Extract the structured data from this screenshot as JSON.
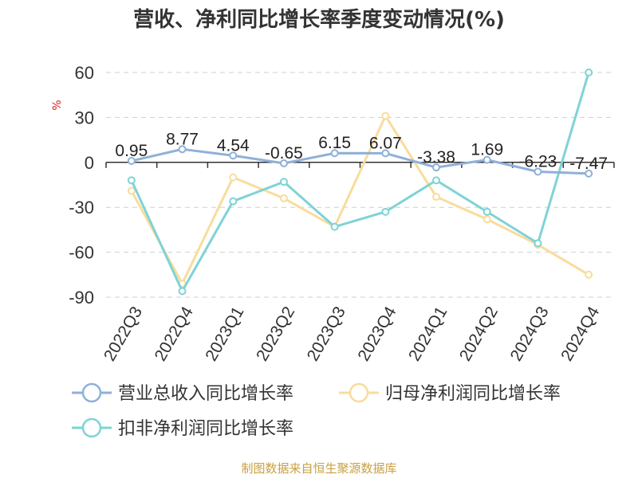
{
  "chart_data": {
    "type": "line",
    "title": "营收、净利同比增长率季度变动情况(%)",
    "ylabel": "%",
    "xlabel": "",
    "ylim": [
      -90,
      60
    ],
    "yticks": [
      60,
      30,
      0,
      -30,
      -60,
      -90
    ],
    "grid": true,
    "legend_position": "bottom",
    "categories": [
      "2022Q3",
      "2022Q4",
      "2023Q1",
      "2023Q2",
      "2023Q3",
      "2023Q4",
      "2024Q1",
      "2024Q2",
      "2024Q3",
      "2024Q4"
    ],
    "series": [
      {
        "name": "营业总收入同比增长率",
        "color": "#8fb1d8",
        "values": [
          0.95,
          8.77,
          4.54,
          -0.65,
          6.15,
          6.07,
          -3.38,
          1.69,
          -6.23,
          -7.47
        ],
        "labels": [
          "0.95",
          "8.77",
          "4.54",
          "-0.65",
          "6.15",
          "6.07",
          "-3.38",
          "1.69",
          "-6.23",
          "-7.47"
        ]
      },
      {
        "name": "归母净利润同比增长率",
        "color": "#f9dc9c",
        "values": [
          -19,
          -81,
          -10,
          -24,
          -43,
          31,
          -23,
          -38,
          -55,
          -75
        ]
      },
      {
        "name": "扣非净利润同比增长率",
        "color": "#7fd3d6",
        "values": [
          -12,
          -86,
          -26,
          -13,
          -43,
          -33,
          -12,
          -33,
          -54,
          60
        ]
      }
    ],
    "source": "制图数据来自恒生聚源数据库"
  }
}
